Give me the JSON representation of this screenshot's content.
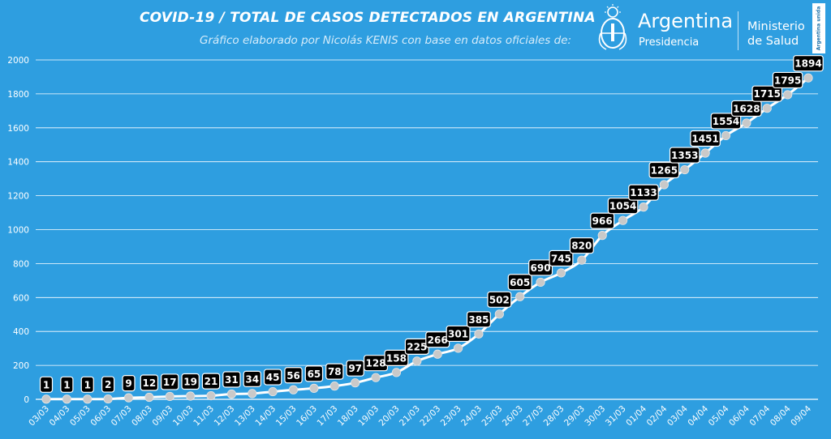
{
  "header": {
    "title": "COVID-19  /  TOTAL DE CASOS DETECTADOS EN ARGENTINA",
    "subtitle": "Gráfico elaborado por Nicolás KENIS con base en datos oficiales de:"
  },
  "logos": {
    "argentina": "Argentina",
    "presidencia": "Presidencia",
    "ministerio_line1": "Ministerio",
    "ministerio_line2": "de Salud",
    "side_tag": "Argentina unida"
  },
  "colors": {
    "background": "#2e9ee0",
    "line": "#ffffff",
    "marker": "#c9c9c9",
    "label_bg": "#000000",
    "label_text": "#ffffff",
    "grid": "#ffffff"
  },
  "chart_data": {
    "type": "line",
    "title": "COVID-19  /  TOTAL DE CASOS DETECTADOS EN ARGENTINA",
    "xlabel": "",
    "ylabel": "",
    "ylim": [
      0,
      2000
    ],
    "yticks": [
      0,
      200,
      400,
      600,
      800,
      1000,
      1200,
      1400,
      1600,
      1800,
      2000
    ],
    "grid": true,
    "categories": [
      "03/03",
      "04/03",
      "05/03",
      "06/03",
      "07/03",
      "08/03",
      "09/03",
      "10/03",
      "11/03",
      "12/03",
      "13/03",
      "14/03",
      "15/03",
      "16/03",
      "17/03",
      "18/03",
      "19/03",
      "20/03",
      "21/03",
      "22/03",
      "23/03",
      "24/03",
      "25/03",
      "26/03",
      "27/03",
      "28/03",
      "29/03",
      "30/03",
      "31/03",
      "01/04",
      "02/04",
      "03/04",
      "04/04",
      "05/04",
      "06/04",
      "07/04",
      "08/04",
      "09/04"
    ],
    "values": [
      1,
      1,
      1,
      2,
      9,
      12,
      17,
      19,
      21,
      31,
      34,
      45,
      56,
      65,
      78,
      97,
      128,
      158,
      225,
      266,
      301,
      385,
      502,
      605,
      690,
      745,
      820,
      966,
      1054,
      1133,
      1265,
      1353,
      1451,
      1554,
      1628,
      1715,
      1795,
      1894
    ]
  }
}
